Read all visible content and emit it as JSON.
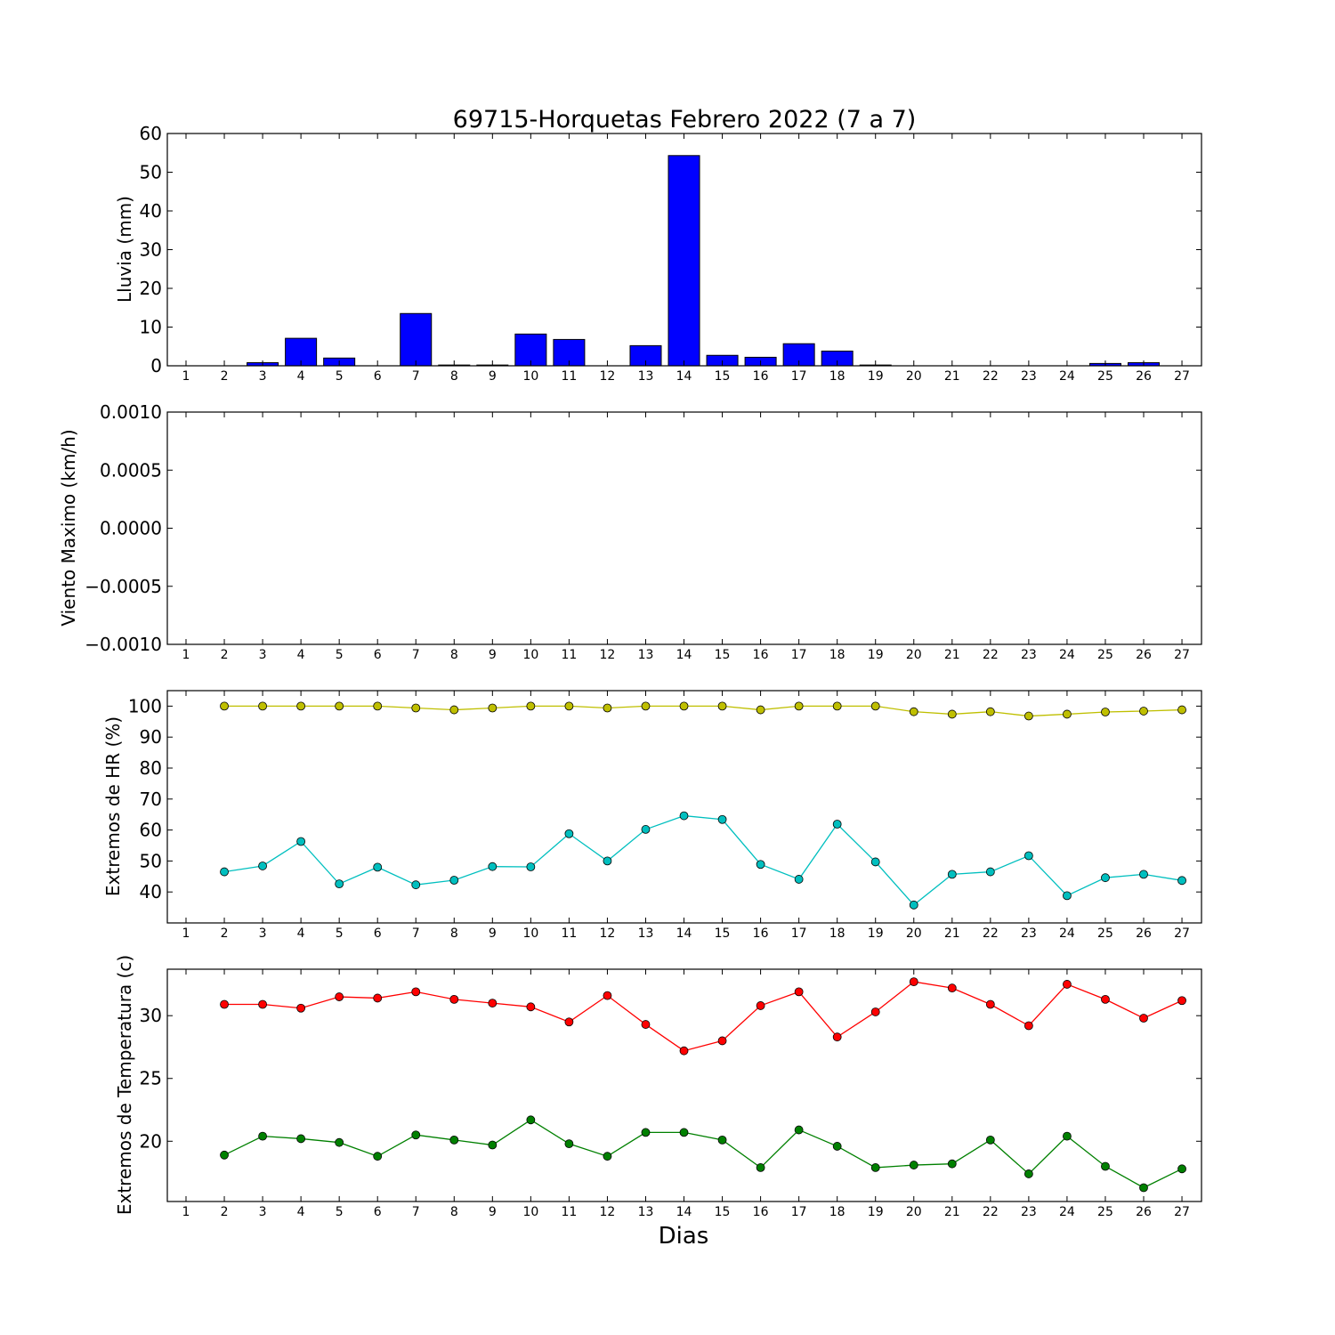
{
  "chart_data": [
    {
      "type": "bar",
      "title": "69715-Horquetas Febrero 2022  (7 a 7)",
      "ylabel": "Lluvia (mm)",
      "xlabel": "",
      "x": [
        1,
        2,
        3,
        4,
        5,
        6,
        7,
        8,
        9,
        10,
        11,
        12,
        13,
        14,
        15,
        16,
        17,
        18,
        19,
        20,
        21,
        22,
        23,
        24,
        25,
        26,
        27
      ],
      "ylim": [
        0,
        60
      ],
      "yticks": [
        "0",
        "10",
        "20",
        "30",
        "40",
        "50",
        "60"
      ],
      "yticks_values": [
        0,
        10,
        20,
        30,
        40,
        50,
        60
      ],
      "series": [
        {
          "color": "#0000ff",
          "values": [
            0,
            0,
            0.8,
            7.1,
            2.0,
            0,
            13.5,
            0.2,
            0.2,
            8.2,
            6.8,
            0,
            5.2,
            54.3,
            2.7,
            2.2,
            5.7,
            3.8,
            0.2,
            0,
            0,
            0,
            0,
            0,
            0.6,
            0.8,
            0
          ]
        }
      ]
    },
    {
      "type": "line",
      "title": "",
      "ylabel": "Viento Maximo (km/h)",
      "xlabel": "",
      "x": [
        1,
        2,
        3,
        4,
        5,
        6,
        7,
        8,
        9,
        10,
        11,
        12,
        13,
        14,
        15,
        16,
        17,
        18,
        19,
        20,
        21,
        22,
        23,
        24,
        25,
        26,
        27
      ],
      "ylim": [
        -0.001,
        0.001
      ],
      "yticks": [
        "−0.0010",
        "−0.0005",
        "0.0000",
        "0.0005",
        "0.0010"
      ],
      "yticks_values": [
        -0.001,
        -0.0005,
        0,
        0.0005,
        0.001
      ],
      "series": []
    },
    {
      "type": "line",
      "title": "",
      "ylabel": "Extremos de HR (%)",
      "xlabel": "",
      "x": [
        1,
        2,
        3,
        4,
        5,
        6,
        7,
        8,
        9,
        10,
        11,
        12,
        13,
        14,
        15,
        16,
        17,
        18,
        19,
        20,
        21,
        22,
        23,
        24,
        25,
        26,
        27
      ],
      "ylim": [
        30,
        105
      ],
      "yticks": [
        "40",
        "50",
        "60",
        "70",
        "80",
        "90",
        "100"
      ],
      "yticks_values": [
        40,
        50,
        60,
        70,
        80,
        90,
        100
      ],
      "series": [
        {
          "color": "#bfbf00",
          "x": [
            2,
            3,
            4,
            5,
            6,
            7,
            8,
            9,
            10,
            11,
            12,
            13,
            14,
            15,
            16,
            17,
            18,
            19,
            20,
            21,
            22,
            23,
            24,
            25,
            26,
            27
          ],
          "values": [
            100,
            100,
            100,
            100,
            100,
            99.4,
            98.8,
            99.4,
            100,
            100,
            99.4,
            100,
            100,
            100,
            98.8,
            100,
            100,
            100,
            98.2,
            97.4,
            98.2,
            96.8,
            97.4,
            98.1,
            98.4,
            98.8
          ]
        },
        {
          "color": "#00bfbf",
          "x": [
            2,
            3,
            4,
            5,
            6,
            7,
            8,
            9,
            10,
            11,
            12,
            13,
            14,
            15,
            16,
            17,
            18,
            19,
            20,
            21,
            22,
            23,
            24,
            25,
            26,
            27
          ],
          "values": [
            46.5,
            48.4,
            56.3,
            42.6,
            48.0,
            42.3,
            43.8,
            48.2,
            48.1,
            58.8,
            50.0,
            60.2,
            64.6,
            63.4,
            48.9,
            44.1,
            61.9,
            49.7,
            35.8,
            45.7,
            46.5,
            51.7,
            38.8,
            44.6,
            45.7,
            43.7
          ]
        }
      ]
    },
    {
      "type": "line",
      "title": "",
      "ylabel": "Extremos de Temperatura (c)",
      "xlabel": "Dias",
      "x": [
        1,
        2,
        3,
        4,
        5,
        6,
        7,
        8,
        9,
        10,
        11,
        12,
        13,
        14,
        15,
        16,
        17,
        18,
        19,
        20,
        21,
        22,
        23,
        24,
        25,
        26,
        27
      ],
      "ylim": [
        15.2,
        33.7
      ],
      "yticks": [
        "20",
        "25",
        "30"
      ],
      "yticks_values": [
        20,
        25,
        30
      ],
      "series": [
        {
          "color": "#ff0000",
          "x": [
            2,
            3,
            4,
            5,
            6,
            7,
            8,
            9,
            10,
            11,
            12,
            13,
            14,
            15,
            16,
            17,
            18,
            19,
            20,
            21,
            22,
            23,
            24,
            25,
            26,
            27
          ],
          "values": [
            30.9,
            30.9,
            30.6,
            31.5,
            31.4,
            31.9,
            31.3,
            31.0,
            30.7,
            29.5,
            31.6,
            29.3,
            27.2,
            28.0,
            30.8,
            31.9,
            28.3,
            30.3,
            32.7,
            32.2,
            30.9,
            29.2,
            32.5,
            31.3,
            29.8,
            31.2
          ]
        },
        {
          "color": "#008000",
          "x": [
            2,
            3,
            4,
            5,
            6,
            7,
            8,
            9,
            10,
            11,
            12,
            13,
            14,
            15,
            16,
            17,
            18,
            19,
            20,
            21,
            22,
            23,
            24,
            25,
            26,
            27
          ],
          "values": [
            18.9,
            20.4,
            20.2,
            19.9,
            18.8,
            20.5,
            20.1,
            19.7,
            21.7,
            19.8,
            18.8,
            20.7,
            20.7,
            20.1,
            17.9,
            20.9,
            19.6,
            17.9,
            18.1,
            18.2,
            20.1,
            17.4,
            20.4,
            18.0,
            16.3,
            17.8
          ]
        }
      ]
    }
  ]
}
